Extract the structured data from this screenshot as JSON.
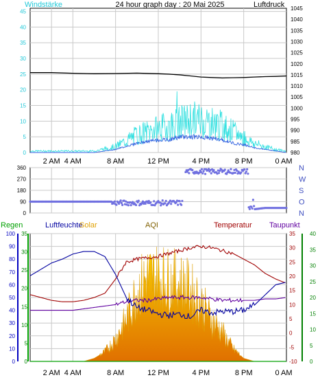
{
  "title": "24 hour graph day : 20 Mai 2025",
  "colors": {
    "wind": "#20c8d8",
    "gust": "#30e0e0",
    "avg_wind": "#3060e0",
    "pressure": "#000000",
    "wind_dir": "#7070e0",
    "rain": "#0000c0",
    "rain_label": "#00a000",
    "humidity": "#0000a0",
    "solar": "#e0a000",
    "aqi": "#806000",
    "temperature": "#a00000",
    "dewpoint": "#6000a0",
    "axis_right_green": "#008000",
    "grid": "#c8c8c8"
  },
  "x_ticks": [
    "2 AM",
    "4 AM",
    "8 AM",
    "12 PM",
    "4 PM",
    "8 PM",
    "0 AM"
  ],
  "panel1": {
    "left_label": "Windstärke",
    "right_label": "Luftdruck",
    "left_ticks": [
      "0",
      "5",
      "10",
      "15",
      "20",
      "25",
      "30",
      "35",
      "40",
      "45"
    ],
    "right_ticks": [
      "980",
      "985",
      "990",
      "995",
      "1000",
      "1005",
      "1010",
      "1015",
      "1020",
      "1025",
      "1030",
      "1035",
      "1040",
      "1045"
    ]
  },
  "panel2": {
    "left_ticks": [
      "0",
      "90",
      "180",
      "270",
      "360"
    ],
    "right_labels": [
      "N",
      "W",
      "S",
      "O",
      "N"
    ]
  },
  "panel3": {
    "legend": {
      "rain": "Regen",
      "humidity": "Luftfeuchte",
      "solar": "Solar",
      "aqi": "AQI",
      "temperature": "Temperatur",
      "dewpoint": "Taupunkt"
    },
    "rain_ticks": [
      "0",
      "10",
      "20",
      "30",
      "40",
      "50",
      "60",
      "70",
      "80",
      "90",
      "100"
    ],
    "rain_green_ticks": [
      "0",
      "5",
      "10",
      "15",
      "20",
      "25",
      "30",
      "35"
    ],
    "temp_ticks": [
      "-10",
      "-5",
      "0",
      "5",
      "10",
      "15",
      "20",
      "25",
      "30",
      "35"
    ],
    "right_green_ticks": [
      "0",
      "5",
      "10",
      "15",
      "20",
      "25",
      "30",
      "35",
      "40"
    ]
  },
  "chart_data": [
    {
      "type": "line",
      "title": "24 hour graph day : 20 Mai 2025",
      "x_unit": "hour of day",
      "x": [
        0,
        2,
        4,
        6,
        8,
        10,
        12,
        13,
        14,
        15,
        16,
        17,
        18,
        19,
        20,
        21,
        22,
        23,
        24
      ],
      "series": [
        {
          "name": "Windstärke",
          "axis": "left",
          "values": [
            0.5,
            0.5,
            0.5,
            0.5,
            2,
            6,
            8,
            9,
            10,
            11,
            11,
            10,
            9,
            7,
            5,
            3,
            2,
            1,
            0.5
          ]
        },
        {
          "name": "Windstärke",
          "axis": "left",
          "style": "average",
          "values": [
            0,
            0,
            0,
            0,
            1,
            3,
            4,
            4,
            5,
            5,
            5,
            4.5,
            4,
            3,
            2.5,
            1.5,
            1,
            0.5,
            0
          ]
        },
        {
          "name": "Luftdruck",
          "axis": "right",
          "values": [
            1016,
            1016,
            1015.7,
            1015.5,
            1015.6,
            1015.8,
            1015.5,
            1015.3,
            1015,
            1014.5,
            1014,
            1013.8,
            1013.6,
            1013.7,
            1013.8,
            1014,
            1014.2,
            1014.3,
            1014.5
          ]
        }
      ],
      "left_ylim": [
        0,
        46
      ],
      "right_ylim": [
        980,
        1045
      ],
      "grid": true
    },
    {
      "type": "scatter",
      "x_unit": "hour of day",
      "series": [
        {
          "name": "wind direction",
          "x": [
            0,
            1,
            2,
            3,
            4,
            5,
            6,
            7,
            7.6,
            8,
            9,
            10,
            11,
            12,
            13,
            14,
            14.5,
            15,
            15.5,
            16,
            16.5,
            17,
            17.5,
            18,
            19,
            20,
            20.5,
            21,
            22,
            23,
            24
          ],
          "values": [
            90,
            90,
            90,
            90,
            90,
            90,
            90,
            90,
            90,
            80,
            85,
            80,
            75,
            70,
            60,
            45,
            330,
            335,
            320,
            340,
            320,
            335,
            340,
            330,
            345,
            350,
            340,
            30,
            40,
            40,
            40
          ]
        }
      ],
      "ylim": [
        0,
        360
      ],
      "grid": true
    },
    {
      "type": "line",
      "x_unit": "hour of day",
      "x": [
        0,
        1,
        2,
        3,
        4,
        5,
        6,
        7,
        8,
        9,
        10,
        11,
        12,
        13,
        14,
        15,
        16,
        17,
        18,
        19,
        20,
        21,
        22,
        23,
        24
      ],
      "series": [
        {
          "name": "Luftfeuchte",
          "axis": "rain",
          "values": [
            67,
            72,
            77,
            80,
            84,
            86,
            86,
            82,
            68,
            50,
            42,
            40,
            37,
            36,
            37,
            35,
            40,
            38,
            39,
            39,
            40,
            44,
            52,
            60,
            62
          ]
        },
        {
          "name": "Temperatur",
          "axis": "temp",
          "values": [
            13.5,
            12.5,
            11.5,
            11,
            11,
            11.5,
            12.5,
            14,
            19,
            25,
            26,
            26.5,
            27,
            28,
            29,
            30,
            30.5,
            30,
            29,
            28,
            26,
            24,
            21,
            19,
            17.5
          ]
        },
        {
          "name": "Taupunkt",
          "axis": "temp",
          "values": [
            8,
            8,
            8,
            8,
            8,
            8.5,
            9,
            9.5,
            10,
            11,
            11.5,
            11.5,
            12,
            12.5,
            12.5,
            12.5,
            12.5,
            12,
            11.5,
            11.5,
            11.5,
            11.5,
            12,
            12,
            12.5
          ]
        },
        {
          "name": "Solar",
          "axis": "right_green",
          "values": [
            0,
            0,
            0,
            0,
            0,
            0,
            1,
            3,
            7,
            13,
            22,
            26,
            26,
            25,
            24,
            22,
            18,
            13,
            9,
            4,
            1,
            0,
            0,
            0,
            0
          ]
        },
        {
          "name": "Regen",
          "axis": "rain",
          "values": [
            0,
            0,
            0,
            0,
            0,
            0,
            0,
            0,
            0,
            0,
            0,
            0,
            0,
            0,
            0,
            0,
            0,
            0,
            0,
            0,
            0,
            0,
            0,
            0,
            0
          ]
        }
      ],
      "rain_ylim": [
        0,
        100
      ],
      "temp_ylim": [
        -10,
        35
      ],
      "right_green_ylim": [
        0,
        40
      ],
      "grid": true
    }
  ]
}
